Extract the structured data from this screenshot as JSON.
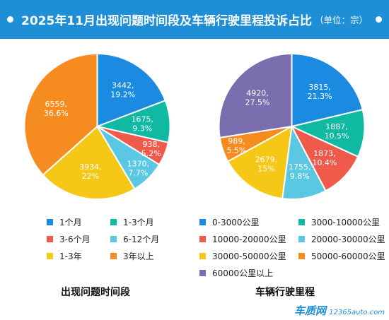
{
  "header": {
    "title": "2025年11月出现问题时间段及车辆行驶里程投诉占比",
    "unit": "（单位：宗）"
  },
  "colors": {
    "header_bg": "#1e8fd6",
    "blue": "#1a8be0",
    "teal": "#0fb9a2",
    "red": "#f05a4a",
    "lightblue": "#5ac8e3",
    "yellow": "#f5c716",
    "orange": "#f68c1f",
    "purple": "#7b6eae"
  },
  "chart_data": [
    {
      "type": "pie",
      "title": "出现问题时间段",
      "slices": [
        {
          "label": "1个月",
          "value": 3442,
          "percent": "19.2%",
          "color": "#1a8be0"
        },
        {
          "label": "1-3个月",
          "value": 1675,
          "percent": "9.3%",
          "color": "#0fb9a2"
        },
        {
          "label": "3-6个月",
          "value": 938,
          "percent": "5.2%",
          "color": "#f05a4a"
        },
        {
          "label": "6-12个月",
          "value": 1370,
          "percent": "7.7%",
          "color": "#5ac8e3"
        },
        {
          "label": "1-3年",
          "value": 3934,
          "percent": "22%",
          "color": "#f5c716"
        },
        {
          "label": "3年以上",
          "value": 6559,
          "percent": "36.6%",
          "color": "#f68c1f"
        }
      ],
      "legend_placement": "bottom"
    },
    {
      "type": "pie",
      "title": "车辆行驶里程",
      "slices": [
        {
          "label": "0-3000公里",
          "value": 3815,
          "percent": "21.3%",
          "color": "#1a8be0"
        },
        {
          "label": "3000-10000公里",
          "value": 1887,
          "percent": "10.5%",
          "color": "#0fb9a2"
        },
        {
          "label": "10000-20000公里",
          "value": 1873,
          "percent": "10.4%",
          "color": "#f05a4a"
        },
        {
          "label": "20000-30000公里",
          "value": 1755,
          "percent": "9.8%",
          "color": "#5ac8e3"
        },
        {
          "label": "30000-50000公里",
          "value": 2679,
          "percent": "15%",
          "color": "#f5c716"
        },
        {
          "label": "50000-60000公里",
          "value": 989,
          "percent": "5.5%",
          "color": "#f68c1f"
        },
        {
          "label": "60000公里以上",
          "value": 4920,
          "percent": "27.5%",
          "color": "#7b6eae"
        }
      ],
      "legend_placement": "bottom"
    }
  ],
  "watermark": {
    "brand": "车质网",
    "url": "12365auto.com"
  }
}
